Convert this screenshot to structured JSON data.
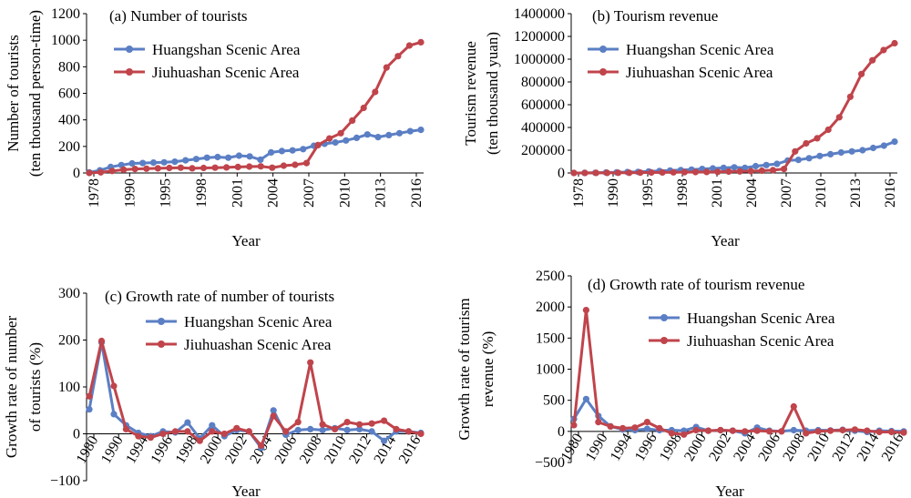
{
  "colors": {
    "huangshan": "#5b7fc4",
    "jiuhuashan": "#c0444b"
  },
  "chart_data": [
    {
      "type": "line",
      "title": "(a) Number of tourists",
      "xlabel": "Year",
      "ylabel": [
        "Number of tourists",
        "(ten thousand person-time)"
      ],
      "ylim": [
        0,
        1200
      ],
      "yticks": [
        "0",
        "200",
        "400",
        "600",
        "800",
        "1000",
        "1200"
      ],
      "xticks": [
        "1978",
        "1990",
        "1995",
        "1998",
        "2001",
        "2004",
        "2007",
        "2010",
        "2013",
        "2016"
      ],
      "legend": "top-left",
      "series": [
        {
          "name": "Huangshan Scenic Area",
          "values": [
            5,
            20,
            45,
            60,
            72,
            75,
            78,
            80,
            85,
            95,
            105,
            115,
            120,
            115,
            130,
            125,
            100,
            155,
            165,
            170,
            180,
            205,
            220,
            230,
            245,
            265,
            290,
            270,
            285,
            300,
            315,
            325
          ]
        },
        {
          "name": "Jiuhuashan Scenic Area",
          "values": [
            0,
            5,
            15,
            25,
            30,
            32,
            35,
            38,
            40,
            35,
            38,
            40,
            42,
            45,
            48,
            50,
            40,
            55,
            62,
            75,
            210,
            260,
            300,
            395,
            490,
            610,
            795,
            880,
            960,
            985
          ]
        }
      ]
    },
    {
      "type": "line",
      "title": "(b) Tourism revenue",
      "xlabel": "Year",
      "ylabel": [
        "Tourism revenue",
        "(ten thousand yuan)"
      ],
      "ylim": [
        0,
        1400000
      ],
      "yticks": [
        "0",
        "200000",
        "400000",
        "600000",
        "800000",
        "1000000",
        "1200000",
        "1400000"
      ],
      "xticks": [
        "1978",
        "1990",
        "1995",
        "1998",
        "2001",
        "2004",
        "2007",
        "2010",
        "2013",
        "2016"
      ],
      "legend": "top-left",
      "series": [
        {
          "name": "Huangshan Scenic Area",
          "values": [
            0,
            1000,
            2000,
            4000,
            6000,
            8000,
            10000,
            14000,
            18000,
            22000,
            26000,
            30000,
            35000,
            40000,
            45000,
            50000,
            45000,
            60000,
            70000,
            80000,
            110000,
            115000,
            130000,
            150000,
            165000,
            180000,
            190000,
            200000,
            220000,
            240000,
            275000
          ]
        },
        {
          "name": "Jiuhuashan Scenic Area",
          "values": [
            0,
            0,
            500,
            1000,
            1500,
            2000,
            3000,
            4000,
            5000,
            6000,
            7000,
            8000,
            9000,
            10000,
            12000,
            14000,
            16000,
            20000,
            25000,
            35000,
            190000,
            260000,
            305000,
            380000,
            490000,
            670000,
            870000,
            990000,
            1080000,
            1140000
          ]
        }
      ]
    },
    {
      "type": "line",
      "title": "(c) Growth rate of number of tourists",
      "xlabel": "Year",
      "ylabel": [
        "Growth rate of number",
        "of tourists (%)"
      ],
      "ylim": [
        -100,
        300
      ],
      "yticks": [
        "−100",
        "0",
        "100",
        "200",
        "300"
      ],
      "xticks": [
        "1980",
        "1990",
        "1994",
        "1996",
        "1998",
        "2000",
        "2002",
        "2004",
        "2006",
        "2008",
        "2010",
        "2012",
        "2014",
        "2016"
      ],
      "legend": "top-right",
      "series": [
        {
          "name": "Huangshan Scenic Area",
          "values": [
            52,
            195,
            42,
            18,
            2,
            -5,
            5,
            3,
            24,
            -10,
            18,
            -5,
            8,
            5,
            -30,
            50,
            -2,
            8,
            10,
            8,
            12,
            8,
            10,
            5,
            -15,
            5,
            5,
            2
          ]
        },
        {
          "name": "Jiuhuashan Scenic Area",
          "values": [
            80,
            198,
            102,
            10,
            -5,
            -8,
            0,
            5,
            5,
            -15,
            5,
            0,
            12,
            5,
            -25,
            38,
            5,
            25,
            152,
            20,
            10,
            25,
            20,
            22,
            28,
            10,
            5,
            0
          ]
        }
      ]
    },
    {
      "type": "line",
      "title": "(d) Growth rate of tourism revenue",
      "xlabel": "Year",
      "ylabel": [
        "Growth rate of tourism",
        "revenue (%)"
      ],
      "ylim": [
        -500,
        2500
      ],
      "yticks": [
        "−500",
        "0",
        "500",
        "1000",
        "1500",
        "2000",
        "2500"
      ],
      "xticks": [
        "1980",
        "1990",
        "1994",
        "1996",
        "1998",
        "2000",
        "2002",
        "2004",
        "2006",
        "2008",
        "2010",
        "2012",
        "2014",
        "2016"
      ],
      "legend": "top-right",
      "series": [
        {
          "name": "Huangshan Scenic Area",
          "values": [
            200,
            520,
            250,
            80,
            30,
            20,
            40,
            20,
            20,
            10,
            70,
            10,
            20,
            10,
            -30,
            60,
            10,
            0,
            20,
            10,
            20,
            15,
            25,
            10,
            -10,
            10,
            5,
            0
          ]
        },
        {
          "name": "Jiuhuashan Scenic Area",
          "values": [
            100,
            1950,
            150,
            80,
            50,
            60,
            150,
            50,
            -30,
            -50,
            20,
            10,
            20,
            10,
            0,
            10,
            0,
            0,
            400,
            -30,
            0,
            10,
            20,
            30,
            10,
            -10,
            -10,
            -20
          ]
        }
      ]
    }
  ]
}
